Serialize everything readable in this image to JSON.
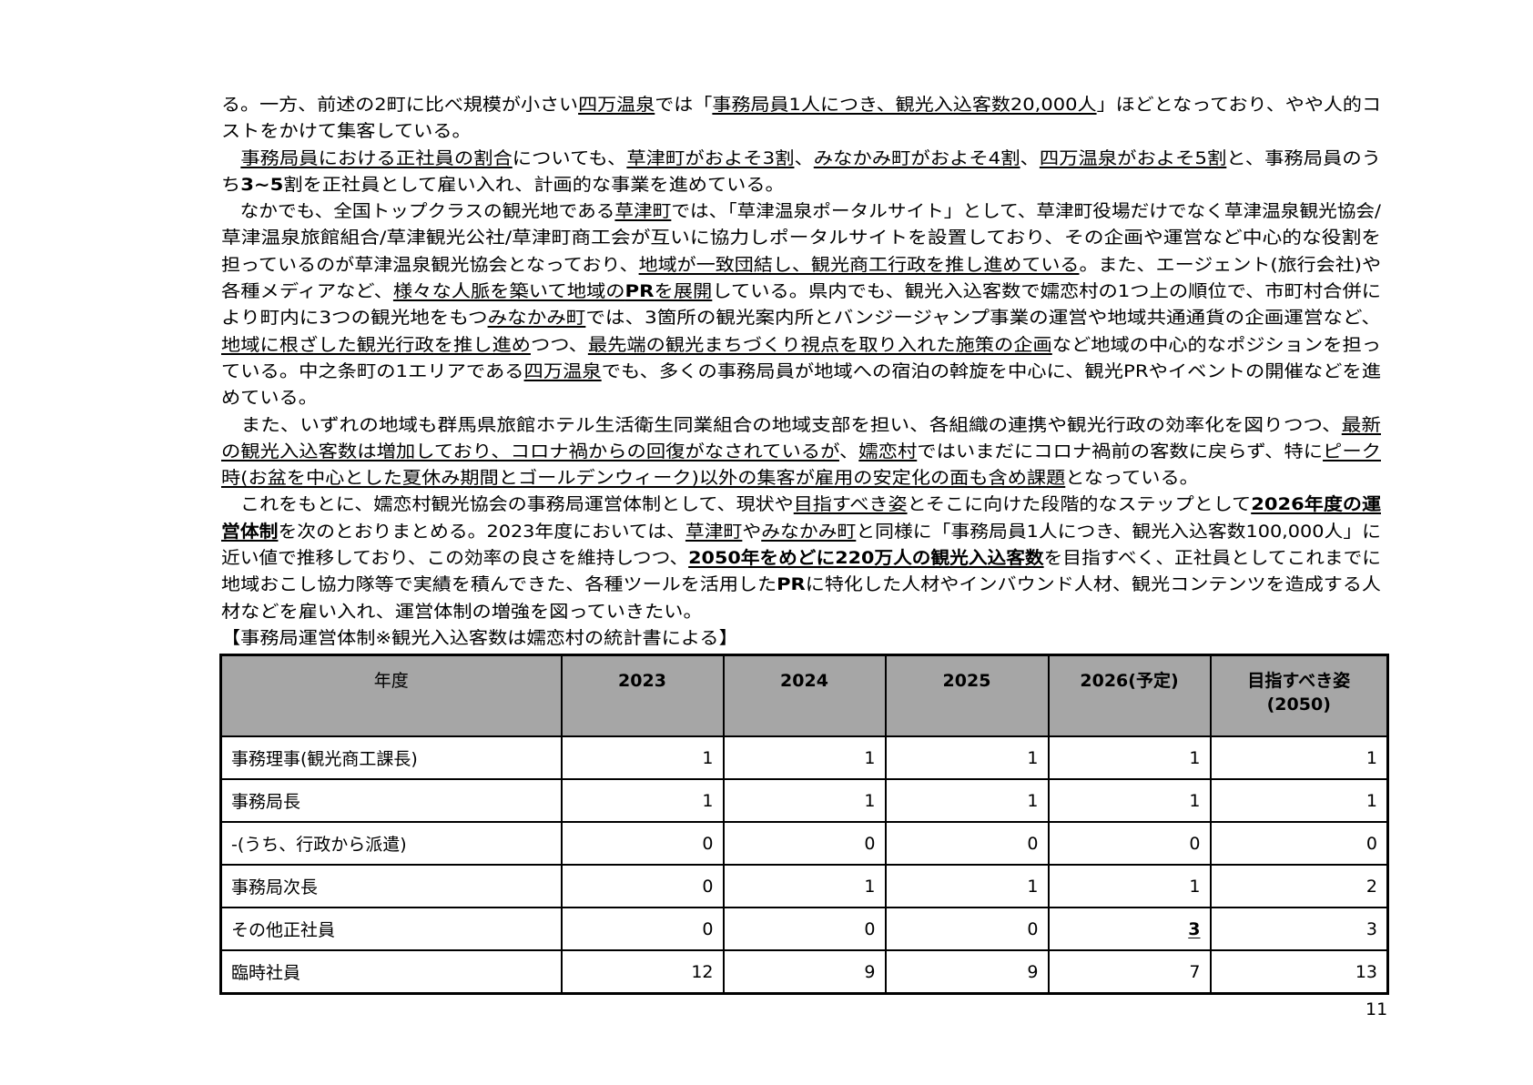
{
  "body_lines": [
    {
      "full": true,
      "segs": [
        {
          "t": "る。一方、前述の2町に比べ規模が小さい"
        },
        {
          "t": "四万温泉",
          "u": true
        },
        {
          "t": "では「"
        },
        {
          "t": "事務局員1人につき、観光入込客数20,000人",
          "u": true
        },
        {
          "t": "」ほどとなっており、やや人的コ"
        }
      ]
    },
    {
      "full": false,
      "segs": [
        {
          "t": "ストをかけて集客している。"
        }
      ]
    },
    {
      "full": true,
      "segs": [
        {
          "t": "　"
        },
        {
          "t": "事務局員における正社員の割合",
          "u": true
        },
        {
          "t": "についても、"
        },
        {
          "t": "草津町がおよそ3割",
          "u": true
        },
        {
          "t": "、"
        },
        {
          "t": "みなかみ町がおよそ4割",
          "u": true
        },
        {
          "t": "、"
        },
        {
          "t": "四万温泉がおよそ5割",
          "u": true
        },
        {
          "t": "と、事務局員のう"
        }
      ]
    },
    {
      "full": false,
      "segs": [
        {
          "t": "ち"
        },
        {
          "t": "3~5",
          "b": true
        },
        {
          "t": "割を正社員として雇い入れ、計画的な事業を進めている。"
        }
      ]
    },
    {
      "full": true,
      "segs": [
        {
          "t": "　なかでも、全国トップクラスの観光地である"
        },
        {
          "t": "草津町",
          "u": true
        },
        {
          "t": "では、「草津温泉ポータルサイト」として、草津町役場だけでなく草津温泉観光協会/"
        }
      ]
    },
    {
      "full": true,
      "segs": [
        {
          "t": "草津温泉旅館組合/草津観光公社/草津町商工会が互いに協力しポータルサイトを設置しており、その企画や運営など中心的な役割を"
        }
      ]
    },
    {
      "full": true,
      "segs": [
        {
          "t": "担っているのが草津温泉観光協会となっており、"
        },
        {
          "t": "地域が一致団結し、観光商工行政を推し進めている",
          "u": true
        },
        {
          "t": "。また、エージェント(旅行会社)や"
        }
      ]
    },
    {
      "full": true,
      "segs": [
        {
          "t": "各種メディアなど、"
        },
        {
          "t": "様々な人脈を築いて地域の",
          "u": true
        },
        {
          "t": "PR",
          "u": true,
          "b": true
        },
        {
          "t": "を展開",
          "u": true
        },
        {
          "t": "している。県内でも、観光入込客数で嬬恋村の1つ上の順位で、市町村合併に"
        }
      ]
    },
    {
      "full": true,
      "segs": [
        {
          "t": "より町内に3つの観光地をもつ"
        },
        {
          "t": "みなかみ町",
          "u": true
        },
        {
          "t": "では、3箇所の観光案内所とバンジージャンプ事業の運営や地域共通通貨の企画運営など、"
        }
      ]
    },
    {
      "full": true,
      "segs": [
        {
          "t": "地域に根ざした観光行政を推し進め",
          "u": true
        },
        {
          "t": "つつ、"
        },
        {
          "t": "最先端の観光まちづくり視点を取り入れた施策の企画",
          "u": true
        },
        {
          "t": "など地域の中心的なポジションを担っ"
        }
      ]
    },
    {
      "full": true,
      "segs": [
        {
          "t": "ている。中之条町の1エリアである"
        },
        {
          "t": "四万温泉",
          "u": true
        },
        {
          "t": "でも、多くの事務局員が地域への宿泊の斡旋を中心に、観光PRやイベントの開催などを進"
        }
      ]
    },
    {
      "full": false,
      "segs": [
        {
          "t": "めている。"
        }
      ]
    },
    {
      "full": true,
      "segs": [
        {
          "t": "　また、いずれの地域も群馬県旅館ホテル生活衛生同業組合の地域支部を担い、各組織の連携や観光行政の効率化を図りつつ、"
        },
        {
          "t": "最新",
          "u": true
        }
      ]
    },
    {
      "full": true,
      "segs": [
        {
          "t": "の観光入込客数は増加しており、コロナ禍からの回復がなされているが",
          "u": true
        },
        {
          "t": "、"
        },
        {
          "t": "嬬恋村",
          "u": true
        },
        {
          "t": "ではいまだにコロナ禍前の客数に戻らず、特に"
        },
        {
          "t": "ピーク",
          "u": true
        }
      ]
    },
    {
      "full": false,
      "segs": [
        {
          "t": "時(お盆を中心とした夏休み期間とゴールデンウィーク)以外の集客が雇用の安定化の面も含め課題",
          "u": true
        },
        {
          "t": "となっている。"
        }
      ]
    },
    {
      "full": true,
      "segs": [
        {
          "t": "　これをもとに、嬬恋村観光協会の事務局運営体制として、現状や"
        },
        {
          "t": "目指すべき姿",
          "u": true
        },
        {
          "t": "とそこに向けた段階的なステップとして"
        },
        {
          "t": "2026年度の運",
          "u": true,
          "b": true
        }
      ]
    },
    {
      "full": true,
      "segs": [
        {
          "t": "営体制",
          "u": true,
          "b": true
        },
        {
          "t": "を次のとおりまとめる。2023年度においては、"
        },
        {
          "t": "草津町",
          "u": true
        },
        {
          "t": "や"
        },
        {
          "t": "みなかみ町",
          "u": true
        },
        {
          "t": "と同様に「事務局員1人につき、観光入込客数100,000人」に"
        }
      ]
    },
    {
      "full": true,
      "segs": [
        {
          "t": "近い値で推移しており、この効率の良さを維持しつつ、"
        },
        {
          "t": "2050年をめどに220万人の観光入込客数",
          "u": true,
          "b": true
        },
        {
          "t": "を目指すべく、正社員としてこれまでに"
        }
      ]
    },
    {
      "full": true,
      "segs": [
        {
          "t": "地域おこし協力隊等で実績を積んできた、各種ツールを活用した"
        },
        {
          "t": "PR",
          "b": true
        },
        {
          "t": "に特化した人材やインバウンド人材、観光コンテンツを造成する人"
        }
      ]
    },
    {
      "full": false,
      "segs": [
        {
          "t": "材などを雇い入れ、運営体制の増強を図っていきたい。"
        }
      ]
    },
    {
      "full": false,
      "segs": [
        {
          "t": "【事務局運営体制※観光入込客数は嬬恋村の統計書による】"
        }
      ]
    }
  ],
  "table": {
    "header_fill": "#a6a6a6",
    "headers": [
      "年度",
      "2023",
      "2024",
      "2025",
      "2026(予定)",
      "目指すべき姿\n(2050)"
    ],
    "header_last_a": "目指すべき姿",
    "header_last_b": "(2050)",
    "rows": [
      {
        "label": "事務理事(観光商工課長)",
        "values": [
          "1",
          "1",
          "1",
          "1",
          "1"
        ]
      },
      {
        "label": "事務局長",
        "values": [
          "1",
          "1",
          "1",
          "1",
          "1"
        ]
      },
      {
        "label": "-(うち、行政から派遣)",
        "values": [
          "0",
          "0",
          "0",
          "0",
          "0"
        ]
      },
      {
        "label": "事務局次長",
        "values": [
          "0",
          "1",
          "1",
          "1",
          "2"
        ]
      },
      {
        "label": "その他正社員",
        "values": [
          "0",
          "0",
          "0",
          "3",
          "3"
        ],
        "emphasized_index": 3
      },
      {
        "label": "臨時社員",
        "values": [
          "12",
          "9",
          "9",
          "7",
          "13"
        ]
      }
    ]
  },
  "page_number": "11"
}
